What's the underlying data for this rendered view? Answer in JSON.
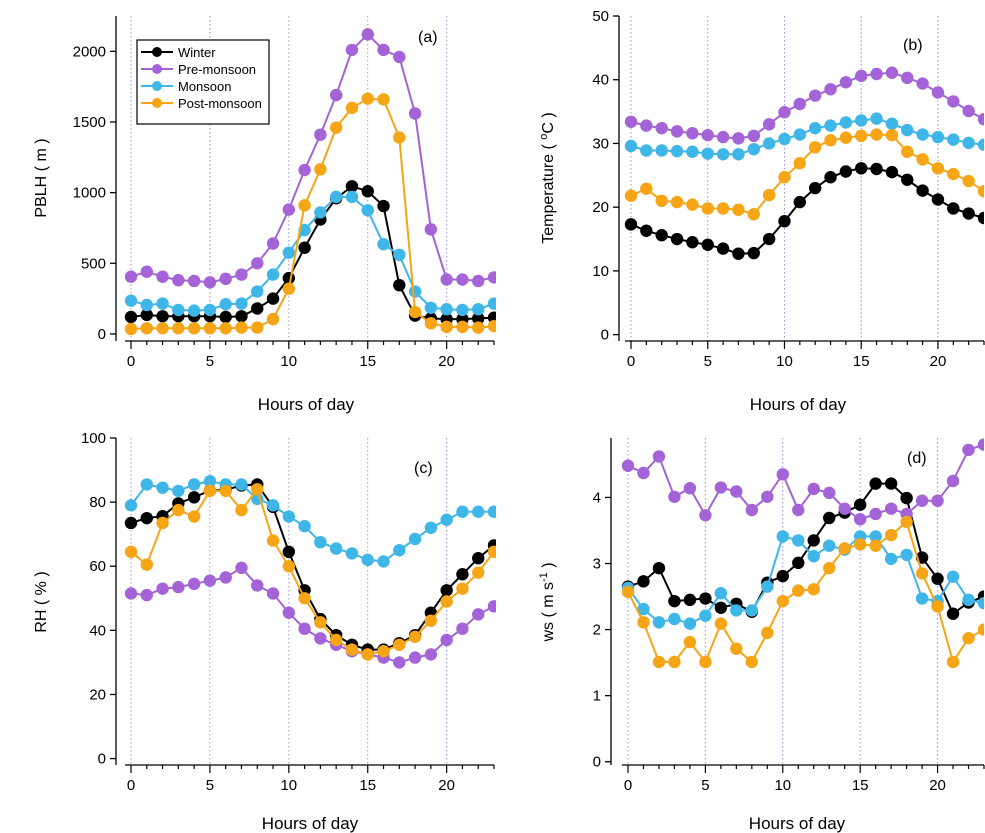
{
  "chart_data": [
    {
      "type": "line",
      "panel_label": "(a)",
      "xlabel": "Hours of day",
      "ylabel": "PBLH ( m )",
      "xlim": [
        -0.5,
        23
      ],
      "ylim": [
        -50,
        2250
      ],
      "xticks": [
        0,
        5,
        10,
        15,
        20
      ],
      "yticks": [
        0,
        500,
        1000,
        1500,
        2000
      ],
      "vlines": [
        0,
        5,
        10,
        15,
        20
      ],
      "legend": "top-left",
      "x": [
        0,
        1,
        2,
        3,
        4,
        5,
        6,
        7,
        8,
        9,
        10,
        11,
        12,
        13,
        14,
        15,
        16,
        17,
        18,
        19,
        20,
        21,
        22,
        23
      ],
      "series": [
        {
          "name": "Winter",
          "color": "#000000",
          "values": [
            120,
            135,
            125,
            125,
            125,
            125,
            120,
            125,
            180,
            250,
            395,
            610,
            810,
            960,
            1045,
            1010,
            905,
            345,
            130,
            110,
            105,
            105,
            110,
            115
          ]
        },
        {
          "name": "Pre-monsoon",
          "color": "#a463d6",
          "values": [
            405,
            440,
            405,
            380,
            375,
            365,
            390,
            420,
            500,
            640,
            880,
            1160,
            1410,
            1690,
            2010,
            2120,
            2010,
            1960,
            1560,
            740,
            385,
            385,
            375,
            400
          ]
        },
        {
          "name": "Monsoon",
          "color": "#3fb6e8",
          "values": [
            235,
            205,
            215,
            170,
            165,
            170,
            210,
            215,
            300,
            420,
            575,
            735,
            860,
            970,
            970,
            875,
            635,
            560,
            300,
            185,
            175,
            170,
            175,
            215
          ]
        },
        {
          "name": "Post-monsoon",
          "color": "#f5a515",
          "values": [
            35,
            40,
            40,
            40,
            40,
            40,
            40,
            45,
            45,
            105,
            320,
            910,
            1165,
            1460,
            1600,
            1665,
            1660,
            1390,
            155,
            75,
            50,
            50,
            45,
            55
          ]
        }
      ]
    },
    {
      "type": "line",
      "panel_label": "(b)",
      "xlabel": "Hours of day",
      "ylabel": "Temperature ( °C )",
      "xlim": [
        -0.5,
        23
      ],
      "ylim": [
        -1,
        50
      ],
      "xticks": [
        0,
        5,
        10,
        15,
        20
      ],
      "yticks": [
        0,
        10,
        20,
        30,
        40,
        50
      ],
      "vlines": [
        0,
        5,
        10,
        15,
        20
      ],
      "x": [
        0,
        1,
        2,
        3,
        4,
        5,
        6,
        7,
        8,
        9,
        10,
        11,
        12,
        13,
        14,
        15,
        16,
        17,
        18,
        19,
        20,
        21,
        22,
        23
      ],
      "series": [
        {
          "name": "Winter",
          "color": "#000000",
          "values": [
            17.3,
            16.3,
            15.6,
            15.0,
            14.5,
            14.1,
            13.5,
            12.7,
            12.8,
            15.0,
            17.8,
            20.8,
            23.0,
            24.7,
            25.6,
            26.1,
            26.0,
            25.5,
            24.3,
            22.6,
            21.2,
            19.8,
            19.0,
            18.3
          ]
        },
        {
          "name": "Pre-monsoon",
          "color": "#a463d6",
          "values": [
            33.4,
            32.8,
            32.4,
            31.9,
            31.6,
            31.3,
            31.0,
            30.8,
            31.2,
            33.0,
            34.9,
            36.2,
            37.5,
            38.5,
            39.6,
            40.6,
            40.9,
            41.1,
            40.3,
            39.4,
            38.0,
            36.6,
            35.1,
            33.8
          ]
        },
        {
          "name": "Monsoon",
          "color": "#3fb6e8",
          "values": [
            29.6,
            28.9,
            28.9,
            28.8,
            28.7,
            28.4,
            28.3,
            28.3,
            29.1,
            30.0,
            30.7,
            31.4,
            32.4,
            32.8,
            33.3,
            33.6,
            33.9,
            33.1,
            32.1,
            31.4,
            31.0,
            30.6,
            30.1,
            29.8
          ]
        },
        {
          "name": "Post-monsoon",
          "color": "#f5a515",
          "values": [
            21.8,
            22.9,
            21.0,
            20.8,
            20.4,
            19.8,
            19.8,
            19.6,
            18.9,
            21.9,
            24.7,
            26.9,
            29.4,
            30.5,
            30.9,
            31.2,
            31.4,
            31.3,
            28.7,
            27.5,
            26.1,
            25.2,
            24.1,
            22.5
          ]
        }
      ]
    },
    {
      "type": "line",
      "panel_label": "(c)",
      "xlabel": "Hours of day",
      "ylabel": "RH ( % )",
      "xlim": [
        -0.5,
        23
      ],
      "ylim": [
        -2,
        100
      ],
      "xticks": [
        0,
        5,
        10,
        15,
        20
      ],
      "yticks": [
        0,
        20,
        40,
        60,
        80,
        100
      ],
      "vlines": [
        0,
        5,
        10,
        15,
        20
      ],
      "x": [
        0,
        1,
        2,
        3,
        4,
        5,
        6,
        7,
        8,
        9,
        10,
        11,
        12,
        13,
        14,
        15,
        16,
        17,
        18,
        19,
        20,
        21,
        22,
        23
      ],
      "series": [
        {
          "name": "Winter",
          "color": "#000000",
          "values": [
            73.5,
            75,
            75.6,
            79.6,
            81.5,
            83.6,
            83.8,
            85.2,
            85.5,
            78.5,
            64.5,
            52.5,
            43.5,
            38.5,
            35.5,
            34,
            34,
            36,
            38.5,
            45.5,
            52.5,
            57.5,
            62.5,
            66.5
          ]
        },
        {
          "name": "Pre-monsoon",
          "color": "#a463d6",
          "values": [
            51.5,
            51,
            53,
            53.5,
            54.5,
            55.5,
            56.5,
            59.5,
            54,
            51.5,
            45.5,
            40.5,
            37.5,
            35.5,
            33.5,
            32.5,
            31.5,
            30,
            31.5,
            32.5,
            37,
            40.5,
            45,
            47.5
          ]
        },
        {
          "name": "Monsoon",
          "color": "#3fb6e8",
          "values": [
            79,
            85.5,
            84.5,
            83.5,
            85.5,
            86.5,
            85.5,
            85.5,
            81,
            79,
            75.5,
            72.5,
            67.5,
            65.5,
            64,
            62,
            61.5,
            65,
            68.5,
            72,
            74.5,
            77,
            77,
            77
          ]
        },
        {
          "name": "Post-monsoon",
          "color": "#f5a515",
          "values": [
            64.5,
            60.5,
            73.5,
            77.5,
            75.5,
            83.5,
            83.5,
            77.5,
            84,
            68,
            60,
            50,
            42.5,
            37,
            34,
            32.5,
            33.5,
            35.5,
            38,
            43,
            49,
            53,
            58,
            64.5
          ]
        }
      ]
    },
    {
      "type": "line",
      "panel_label": "(d)",
      "xlabel": "Hours of day",
      "ylabel": "ws ( m s-1 )",
      "xlim": [
        -0.5,
        23
      ],
      "ylim": [
        -0.05,
        4.9
      ],
      "xticks": [
        0,
        5,
        10,
        15,
        20
      ],
      "yticks": [
        0,
        1,
        2,
        3,
        4
      ],
      "vlines": [
        0,
        5,
        10,
        15,
        20
      ],
      "x": [
        0,
        1,
        2,
        3,
        4,
        5,
        6,
        7,
        8,
        9,
        10,
        11,
        12,
        13,
        14,
        15,
        16,
        17,
        18,
        19,
        20,
        21,
        22,
        23
      ],
      "series": [
        {
          "name": "Winter",
          "color": "#000000",
          "values": [
            2.65,
            2.73,
            2.93,
            2.43,
            2.45,
            2.47,
            2.33,
            2.39,
            2.27,
            2.71,
            2.81,
            3.01,
            3.35,
            3.69,
            3.77,
            3.89,
            4.21,
            4.21,
            3.99,
            3.09,
            2.77,
            2.24,
            2.41,
            2.5
          ]
        },
        {
          "name": "Pre-monsoon",
          "color": "#a463d6",
          "values": [
            4.48,
            4.37,
            4.62,
            4.01,
            4.14,
            3.73,
            4.15,
            4.09,
            3.81,
            4.01,
            4.35,
            3.81,
            4.13,
            4.07,
            3.83,
            3.67,
            3.75,
            3.83,
            3.75,
            3.95,
            3.95,
            4.25,
            4.72,
            4.8
          ]
        },
        {
          "name": "Monsoon",
          "color": "#3fb6e8",
          "values": [
            2.63,
            2.31,
            2.11,
            2.16,
            2.09,
            2.21,
            2.55,
            2.29,
            2.29,
            2.65,
            3.41,
            3.35,
            3.11,
            3.27,
            3.21,
            3.41,
            3.41,
            3.07,
            3.13,
            2.47,
            2.43,
            2.8,
            2.45,
            2.4
          ]
        },
        {
          "name": "Post-monsoon",
          "color": "#f5a515",
          "values": [
            2.57,
            2.11,
            1.51,
            1.51,
            1.81,
            1.51,
            2.09,
            1.71,
            1.51,
            1.95,
            2.43,
            2.59,
            2.61,
            2.93,
            3.23,
            3.29,
            3.27,
            3.43,
            3.63,
            2.85,
            2.35,
            1.51,
            1.87,
            2.0
          ]
        }
      ]
    }
  ]
}
